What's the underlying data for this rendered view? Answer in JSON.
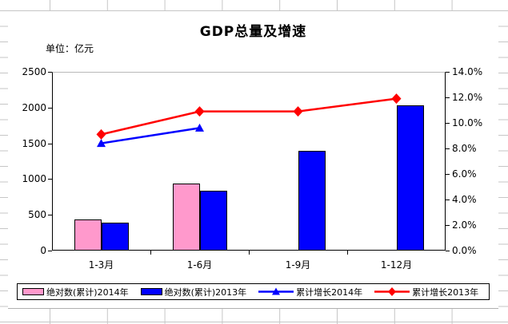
{
  "sheet": {
    "grid_color": "#C6C6C6",
    "background": "#FFFFFF"
  },
  "chart_data": {
    "type": "combo-bar-line",
    "title": "GDP总量及增速",
    "unit_label": "单位：亿元",
    "categories": [
      "1-3月",
      "1-6月",
      "1-9月",
      "1-12月"
    ],
    "bar_series": [
      {
        "name": "绝对数(累计)2014年",
        "axis": "left",
        "color": "#FF99CC",
        "values": [
          435,
          935,
          null,
          null
        ]
      },
      {
        "name": "绝对数(累计)2013年",
        "axis": "left",
        "color": "#0000FF",
        "values": [
          395,
          840,
          1400,
          2030
        ]
      }
    ],
    "line_series": [
      {
        "name": "累计增长2014年",
        "axis": "right",
        "color": "#0000FF",
        "marker": "triangle",
        "values_percent": [
          8.4,
          9.6,
          null,
          null
        ]
      },
      {
        "name": "累计增长2013年",
        "axis": "right",
        "color": "#FF0000",
        "marker": "diamond",
        "values_percent": [
          9.1,
          10.9,
          10.9,
          11.9
        ]
      }
    ],
    "left_axis": {
      "min": 0,
      "max": 2500,
      "step": 500,
      "tick_labels": [
        "0",
        "500",
        "1000",
        "1500",
        "2000",
        "2500"
      ]
    },
    "right_axis": {
      "min": 0,
      "max": 14,
      "step": 2,
      "tick_labels": [
        "0.0%",
        "2.0%",
        "4.0%",
        "6.0%",
        "8.0%",
        "10.0%",
        "12.0%",
        "14.0%"
      ]
    },
    "gridlines": "top-border-only",
    "legend_position": "bottom",
    "plot_background": "#FFFFFF"
  }
}
